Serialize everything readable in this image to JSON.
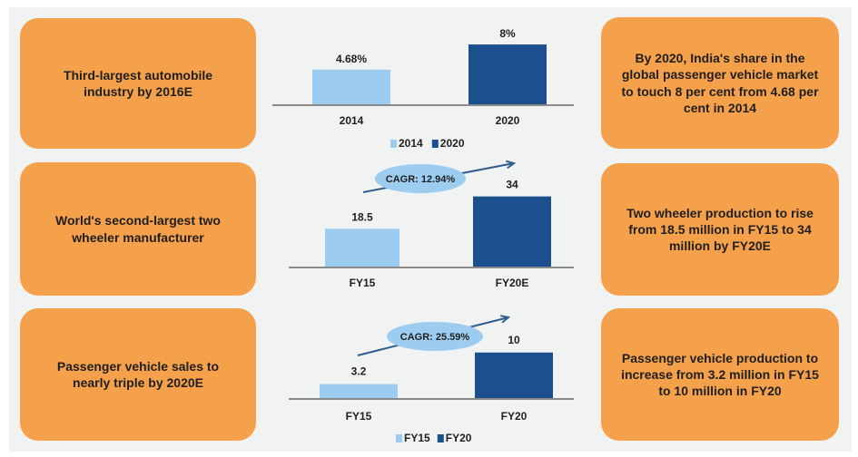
{
  "colors": {
    "box": "#f5a04a",
    "light": "#9ccdf0",
    "dark": "#1b4f8e",
    "arrow": "#2f5f8f",
    "cagr_bubble": "#9ccdf0"
  },
  "rows": [
    {
      "left_text": "Third-largest automobile industry by 2016E",
      "right_text": "By 2020, India's share in the global passenger vehicle market to touch 8 per cent from 4.68 per cent in 2014"
    },
    {
      "left_text": "World's second-largest two wheeler manufacturer",
      "right_text": "Two wheeler production to rise from 18.5 million in FY15 to 34 million by FY20E"
    },
    {
      "left_text": "Passenger vehicle sales to nearly triple by 2020E",
      "right_text": "Passenger vehicle production to increase from 3.2 million in FY15 to 10 million in FY20"
    }
  ],
  "chart_data": [
    {
      "type": "bar",
      "categories": [
        "2014",
        "2020"
      ],
      "values": [
        4.68,
        8
      ],
      "value_labels": [
        "4.68%",
        "8%"
      ],
      "legend": [
        "2014",
        "2020"
      ],
      "legend_placement": "bottom",
      "ylim": [
        0,
        8.6
      ]
    },
    {
      "type": "bar",
      "categories": [
        "FY15",
        "FY20E"
      ],
      "values": [
        18.5,
        34
      ],
      "value_labels": [
        "18.5",
        "34"
      ],
      "annotation": "CAGR: 12.94%",
      "ylim": [
        0,
        36
      ]
    },
    {
      "type": "bar",
      "categories": [
        "FY15",
        "FY20"
      ],
      "values": [
        3.2,
        10
      ],
      "value_labels": [
        "3.2",
        "10"
      ],
      "annotation": "CAGR: 25.59%",
      "legend": [
        "FY15",
        "FY20"
      ],
      "legend_placement": "bottom",
      "ylim": [
        0,
        12.3
      ]
    }
  ]
}
